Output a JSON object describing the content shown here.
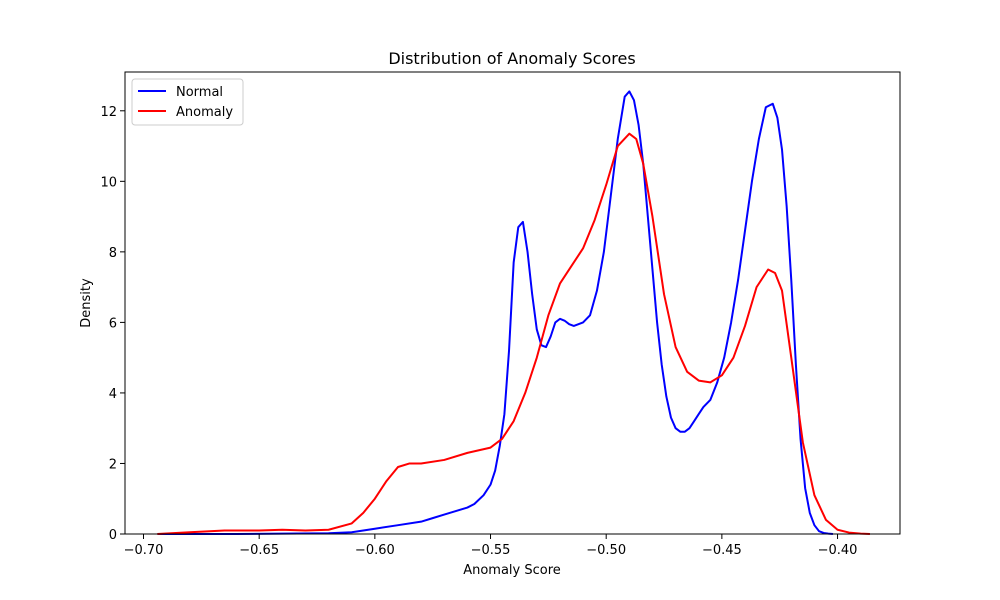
{
  "chart_data": {
    "type": "line",
    "title": "Distribution of Anomaly Scores",
    "xlabel": "Anomaly Score",
    "ylabel": "Density",
    "xlim": [
      -0.708,
      -0.373
    ],
    "ylim": [
      0,
      13.1
    ],
    "xticks": [
      -0.7,
      -0.65,
      -0.6,
      -0.55,
      -0.5,
      -0.45,
      -0.4
    ],
    "xtick_labels": [
      "−0.70",
      "−0.65",
      "−0.60",
      "−0.55",
      "−0.50",
      "−0.45",
      "−0.40"
    ],
    "yticks": [
      0,
      2,
      4,
      6,
      8,
      10,
      12
    ],
    "ytick_labels": [
      "0",
      "2",
      "4",
      "6",
      "8",
      "10",
      "12"
    ],
    "grid": false,
    "legend_position": "top-left",
    "series": [
      {
        "name": "Normal",
        "color": "#0000ff",
        "x": [
          -0.694,
          -0.68,
          -0.66,
          -0.64,
          -0.62,
          -0.61,
          -0.6,
          -0.59,
          -0.58,
          -0.575,
          -0.57,
          -0.565,
          -0.56,
          -0.557,
          -0.553,
          -0.55,
          -0.548,
          -0.546,
          -0.544,
          -0.542,
          -0.54,
          -0.538,
          -0.536,
          -0.534,
          -0.532,
          -0.53,
          -0.528,
          -0.526,
          -0.524,
          -0.522,
          -0.52,
          -0.518,
          -0.516,
          -0.514,
          -0.512,
          -0.51,
          -0.507,
          -0.504,
          -0.501,
          -0.498,
          -0.495,
          -0.492,
          -0.49,
          -0.488,
          -0.486,
          -0.484,
          -0.482,
          -0.48,
          -0.478,
          -0.476,
          -0.474,
          -0.472,
          -0.47,
          -0.468,
          -0.466,
          -0.464,
          -0.462,
          -0.46,
          -0.458,
          -0.455,
          -0.452,
          -0.449,
          -0.446,
          -0.443,
          -0.44,
          -0.437,
          -0.434,
          -0.431,
          -0.428,
          -0.426,
          -0.424,
          -0.422,
          -0.42,
          -0.418,
          -0.416,
          -0.414,
          -0.412,
          -0.41,
          -0.408,
          -0.406,
          -0.404,
          -0.402
        ],
        "y": [
          0.0,
          0.0,
          0.0,
          0.01,
          0.02,
          0.05,
          0.15,
          0.25,
          0.35,
          0.45,
          0.55,
          0.65,
          0.75,
          0.85,
          1.1,
          1.4,
          1.8,
          2.5,
          3.4,
          5.2,
          7.7,
          8.7,
          8.85,
          8.0,
          6.8,
          5.8,
          5.35,
          5.3,
          5.6,
          6.0,
          6.1,
          6.05,
          5.95,
          5.9,
          5.95,
          6.0,
          6.2,
          6.9,
          8.0,
          9.6,
          11.2,
          12.4,
          12.55,
          12.3,
          11.6,
          10.5,
          9.0,
          7.5,
          6.0,
          4.8,
          3.9,
          3.3,
          3.0,
          2.9,
          2.9,
          3.0,
          3.2,
          3.4,
          3.6,
          3.8,
          4.3,
          5.0,
          6.0,
          7.2,
          8.6,
          10.0,
          11.2,
          12.1,
          12.2,
          11.8,
          10.9,
          9.3,
          7.2,
          4.8,
          2.7,
          1.3,
          0.6,
          0.25,
          0.08,
          0.03,
          0.01,
          0.0
        ]
      },
      {
        "name": "Anomaly",
        "color": "#ff0000",
        "x": [
          -0.694,
          -0.68,
          -0.665,
          -0.65,
          -0.64,
          -0.63,
          -0.62,
          -0.61,
          -0.605,
          -0.6,
          -0.595,
          -0.59,
          -0.585,
          -0.58,
          -0.57,
          -0.56,
          -0.55,
          -0.545,
          -0.54,
          -0.535,
          -0.53,
          -0.525,
          -0.52,
          -0.515,
          -0.51,
          -0.505,
          -0.5,
          -0.495,
          -0.49,
          -0.487,
          -0.484,
          -0.48,
          -0.475,
          -0.47,
          -0.465,
          -0.46,
          -0.455,
          -0.45,
          -0.445,
          -0.44,
          -0.435,
          -0.43,
          -0.427,
          -0.424,
          -0.42,
          -0.415,
          -0.41,
          -0.405,
          -0.4,
          -0.395,
          -0.39,
          -0.386
        ],
        "y": [
          0.0,
          0.05,
          0.1,
          0.1,
          0.12,
          0.1,
          0.12,
          0.3,
          0.6,
          1.0,
          1.5,
          1.9,
          2.0,
          2.0,
          2.1,
          2.3,
          2.45,
          2.7,
          3.2,
          4.0,
          5.0,
          6.2,
          7.1,
          7.6,
          8.1,
          8.9,
          9.9,
          11.0,
          11.35,
          11.2,
          10.5,
          9.0,
          6.8,
          5.3,
          4.6,
          4.35,
          4.3,
          4.5,
          5.0,
          5.9,
          7.0,
          7.5,
          7.4,
          6.9,
          5.0,
          2.6,
          1.1,
          0.4,
          0.12,
          0.04,
          0.01,
          0.0
        ]
      }
    ]
  }
}
